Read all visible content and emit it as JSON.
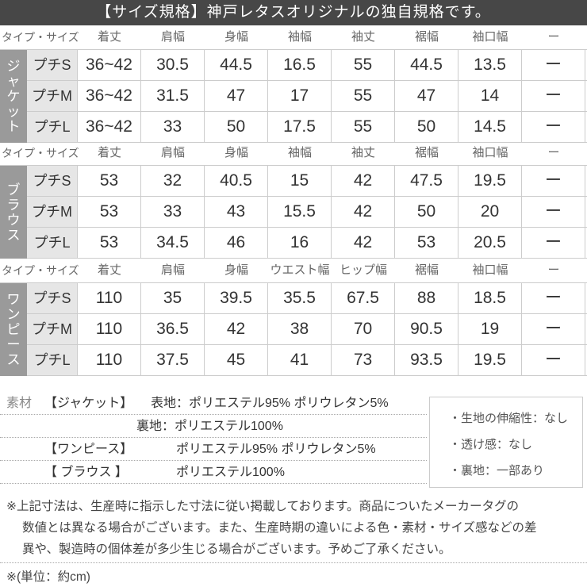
{
  "title": "【サイズ規格】神戸レタスオリジナルの独自規格です。",
  "tables": [
    {
      "type": "ジャケット",
      "type_chars": [
        "ジ",
        "ャ",
        "ケ",
        "ッ",
        "ト"
      ],
      "headers": [
        "タイプ・サイズ",
        "着丈",
        "肩幅",
        "身幅",
        "袖幅",
        "袖丈",
        "裾幅",
        "袖口幅",
        "ー"
      ],
      "rows": [
        {
          "size": "プチS",
          "values": [
            "36~42",
            "30.5",
            "44.5",
            "16.5",
            "55",
            "44.5",
            "13.5",
            "ー"
          ]
        },
        {
          "size": "プチM",
          "values": [
            "36~42",
            "31.5",
            "47",
            "17",
            "55",
            "47",
            "14",
            "ー"
          ]
        },
        {
          "size": "プチL",
          "values": [
            "36~42",
            "33",
            "50",
            "17.5",
            "55",
            "50",
            "14.5",
            "ー"
          ]
        }
      ]
    },
    {
      "type": "ブラウス",
      "type_chars": [
        "ブ",
        "ラ",
        "ウ",
        "ス"
      ],
      "headers": [
        "タイプ・サイズ",
        "着丈",
        "肩幅",
        "身幅",
        "袖幅",
        "袖丈",
        "裾幅",
        "袖口幅",
        "ー"
      ],
      "rows": [
        {
          "size": "プチS",
          "values": [
            "53",
            "32",
            "40.5",
            "15",
            "42",
            "47.5",
            "19.5",
            "ー"
          ]
        },
        {
          "size": "プチM",
          "values": [
            "53",
            "33",
            "43",
            "15.5",
            "42",
            "50",
            "20",
            "ー"
          ]
        },
        {
          "size": "プチL",
          "values": [
            "53",
            "34.5",
            "46",
            "16",
            "42",
            "53",
            "20.5",
            "ー"
          ]
        }
      ]
    },
    {
      "type": "ワンピース",
      "type_chars": [
        "ワ",
        "ン",
        "ピ",
        "ー",
        "ス"
      ],
      "headers": [
        "タイプ・サイズ",
        "着丈",
        "肩幅",
        "身幅",
        "ウエスト幅",
        "ヒップ幅",
        "裾幅",
        "袖口幅",
        "ー"
      ],
      "rows": [
        {
          "size": "プチS",
          "values": [
            "110",
            "35",
            "39.5",
            "35.5",
            "67.5",
            "88",
            "18.5",
            "ー"
          ]
        },
        {
          "size": "プチM",
          "values": [
            "110",
            "36.5",
            "42",
            "38",
            "70",
            "90.5",
            "19",
            "ー"
          ]
        },
        {
          "size": "プチL",
          "values": [
            "110",
            "37.5",
            "45",
            "41",
            "73",
            "93.5",
            "19.5",
            "ー"
          ]
        }
      ]
    }
  ],
  "materials": {
    "label": "素材",
    "lines": [
      {
        "item": "【ジャケット】",
        "text": "表地：ポリエステル95% ポリウレタン5%"
      },
      {
        "item": "",
        "text": "裏地：ポリエステル100%"
      },
      {
        "item": "【ワンピース】",
        "text": "ポリエステル95% ポリウレタン5%"
      },
      {
        "item": "【 ブラウス 】",
        "text": "ポリエステル100%"
      }
    ]
  },
  "properties": [
    "・生地の伸縮性：なし",
    "・透け感：なし",
    "・裏地：一部あり"
  ],
  "notes": [
    "※上記寸法は、生産時に指示した寸法に従い掲載しております。商品についたメーカータグの",
    "数値とは異なる場合がございます。また、生産時期の違いによる色・素材・サイズ感などの差",
    "異や、製造時の個体差が多少生じる場合がございます。予めご了承ください。"
  ],
  "unit": "※(単位：約cm)"
}
